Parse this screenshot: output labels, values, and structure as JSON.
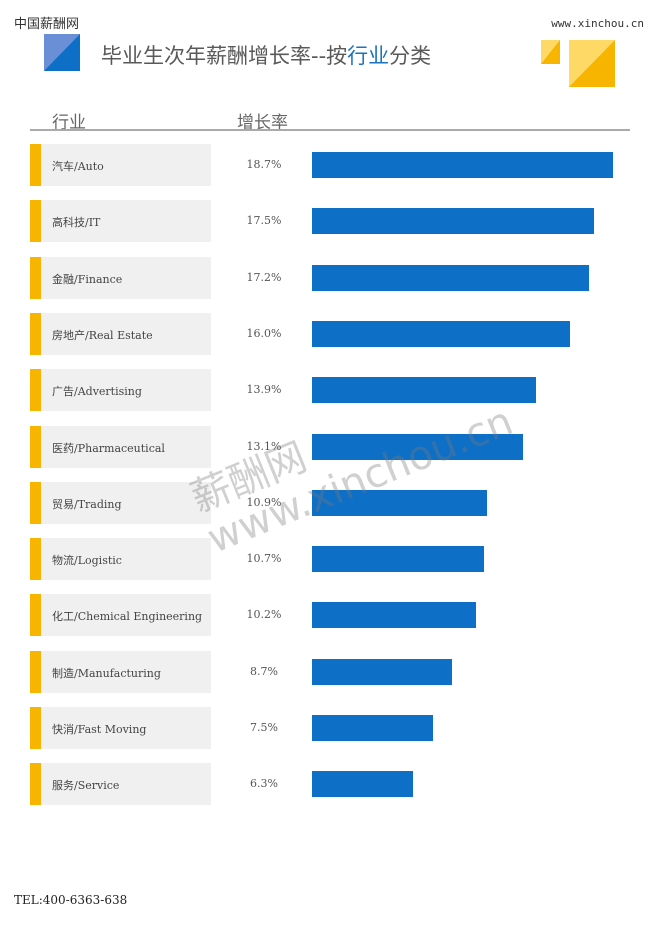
{
  "header": {
    "brand": "中国薪酬网",
    "site": "www.xinchou.cn",
    "title_prefix": "毕业生次年薪酬增长率--按",
    "title_highlight": "行业",
    "title_suffix": "分类"
  },
  "colors": {
    "bar": "#0e6fc7",
    "accent": "#f7b500",
    "highlight": "#1a75bc"
  },
  "watermark": {
    "line1": "薪酬网",
    "line2": "www.xinchou.cn"
  },
  "footer": {
    "tel": "TEL:400-6363-638"
  },
  "chart_data": {
    "type": "bar",
    "orientation": "horizontal",
    "column_headers": [
      "行业",
      "增长率"
    ],
    "categories": [
      "汽车/Auto",
      "高科技/IT",
      "金融/Finance",
      "房地产/Real Estate",
      "广告/Advertising",
      "医药/Pharmaceutical",
      "贸易/Trading",
      "物流/Logistic",
      "化工/Chemical Engineering",
      "制造/Manufacturing",
      "快消/Fast Moving",
      "服务/Service"
    ],
    "values": [
      18.7,
      17.5,
      17.2,
      16.0,
      13.9,
      13.1,
      10.9,
      10.7,
      10.2,
      8.7,
      7.5,
      6.3
    ],
    "value_labels": [
      "18.7%",
      "17.5%",
      "17.2%",
      "16.0%",
      "13.9%",
      "13.1%",
      "10.9%",
      "10.7%",
      "10.2%",
      "8.7%",
      "7.5%",
      "6.3%"
    ],
    "unit": "%"
  }
}
